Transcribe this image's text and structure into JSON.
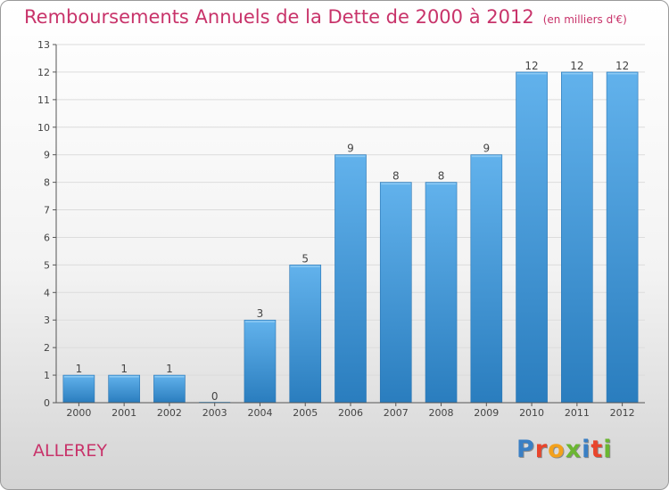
{
  "header": {
    "title": "Remboursements Annuels de la Dette de 2000 à 2012",
    "unit": "(en milliers d'€)"
  },
  "footer": {
    "town": "ALLEREY",
    "logo": "Proxiti",
    "logo_colors": [
      "#3a7fc4",
      "#e8452c",
      "#f3a11c",
      "#6bb632",
      "#3a7fc4",
      "#e8452c",
      "#6bb632"
    ]
  },
  "colors": {
    "bar_top": "#62b2ec",
    "bar_bottom": "#2a7dbe",
    "axis": "#555555",
    "grid": "#dcdcdc",
    "text": "#444444"
  },
  "chart_data": {
    "type": "bar",
    "categories": [
      "2000",
      "2001",
      "2002",
      "2003",
      "2004",
      "2005",
      "2006",
      "2007",
      "2008",
      "2009",
      "2010",
      "2011",
      "2012"
    ],
    "values": [
      1,
      1,
      1,
      0,
      3,
      5,
      9,
      8,
      8,
      9,
      12,
      12,
      12
    ],
    "ylim": [
      0,
      13
    ],
    "yticks": [
      0,
      1,
      2,
      3,
      4,
      5,
      6,
      7,
      8,
      9,
      10,
      11,
      12,
      13
    ],
    "grid": true,
    "legend": "none"
  }
}
